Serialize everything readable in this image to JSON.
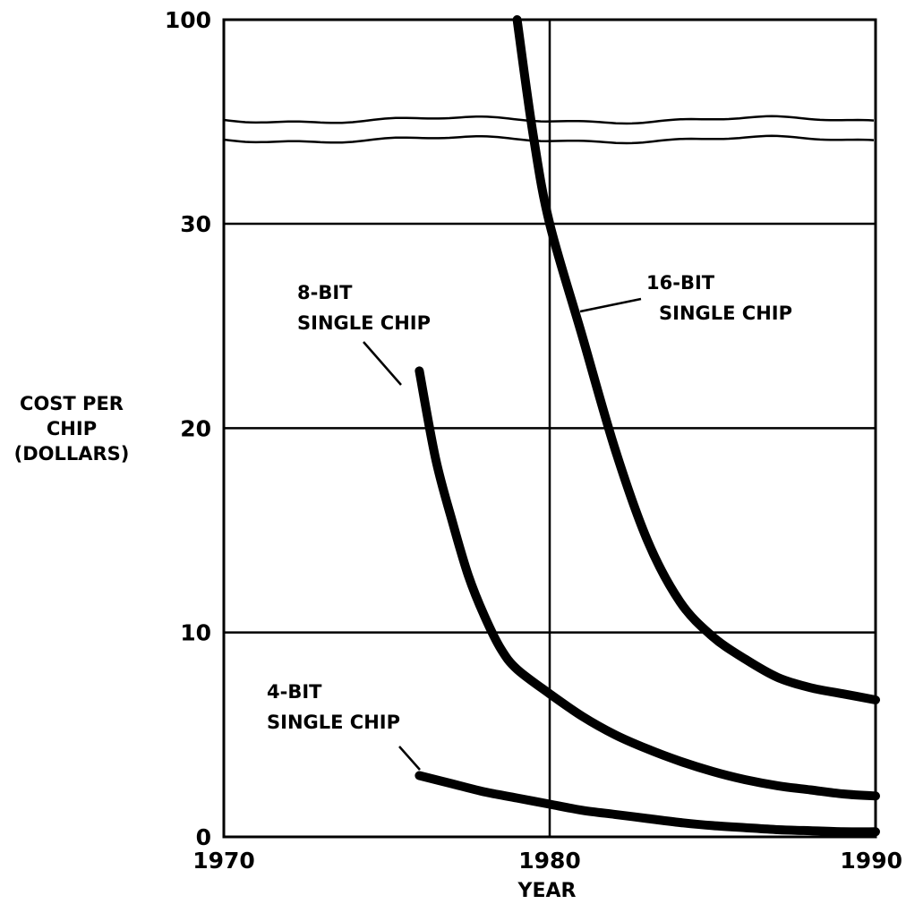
{
  "chart_data": {
    "type": "line",
    "xlabel": "YEAR",
    "ylabel_lines": [
      "COST PER",
      "CHIP",
      "(DOLLARS)"
    ],
    "xlim": [
      1970,
      1990
    ],
    "x_ticks": [
      "1970",
      "1980",
      "1990"
    ],
    "y_ticks": [
      "0",
      "10",
      "20",
      "30",
      "100"
    ],
    "y_axis_break": "between 30 and 100",
    "grid": true,
    "series": [
      {
        "name_lines": [
          "16-BIT",
          "SINGLE CHIP"
        ],
        "x": [
          1979.0,
          1979.5,
          1980.0,
          1981.0,
          1982.0,
          1983.0,
          1984.0,
          1985.0,
          1986.0,
          1987.0,
          1988.0,
          1989.0,
          1990.0
        ],
        "y": [
          100,
          60,
          30,
          24.5,
          19,
          14.5,
          11.5,
          9.8,
          8.7,
          7.8,
          7.3,
          7.0,
          6.7
        ]
      },
      {
        "name_lines": [
          "8-BIT",
          "SINGLE CHIP"
        ],
        "x": [
          1976.0,
          1976.5,
          1977.0,
          1977.5,
          1978.0,
          1978.5,
          1979.0,
          1980.0,
          1981.0,
          1982.0,
          1983.0,
          1984.0,
          1985.0,
          1986.0,
          1987.0,
          1988.0,
          1989.0,
          1990.0
        ],
        "y": [
          22.8,
          18.5,
          15.5,
          12.8,
          10.8,
          9.2,
          8.2,
          7.0,
          5.9,
          5.0,
          4.3,
          3.7,
          3.2,
          2.8,
          2.5,
          2.3,
          2.1,
          2.0
        ]
      },
      {
        "name_lines": [
          "4-BIT",
          "SINGLE CHIP"
        ],
        "x": [
          1976.0,
          1977.0,
          1978.0,
          1979.0,
          1980.0,
          1981.0,
          1982.0,
          1983.0,
          1984.0,
          1985.0,
          1986.0,
          1987.0,
          1988.0,
          1989.0,
          1990.0
        ],
        "y": [
          3.0,
          2.6,
          2.2,
          1.9,
          1.6,
          1.3,
          1.1,
          0.9,
          0.7,
          0.55,
          0.45,
          0.35,
          0.3,
          0.25,
          0.25
        ]
      }
    ]
  }
}
